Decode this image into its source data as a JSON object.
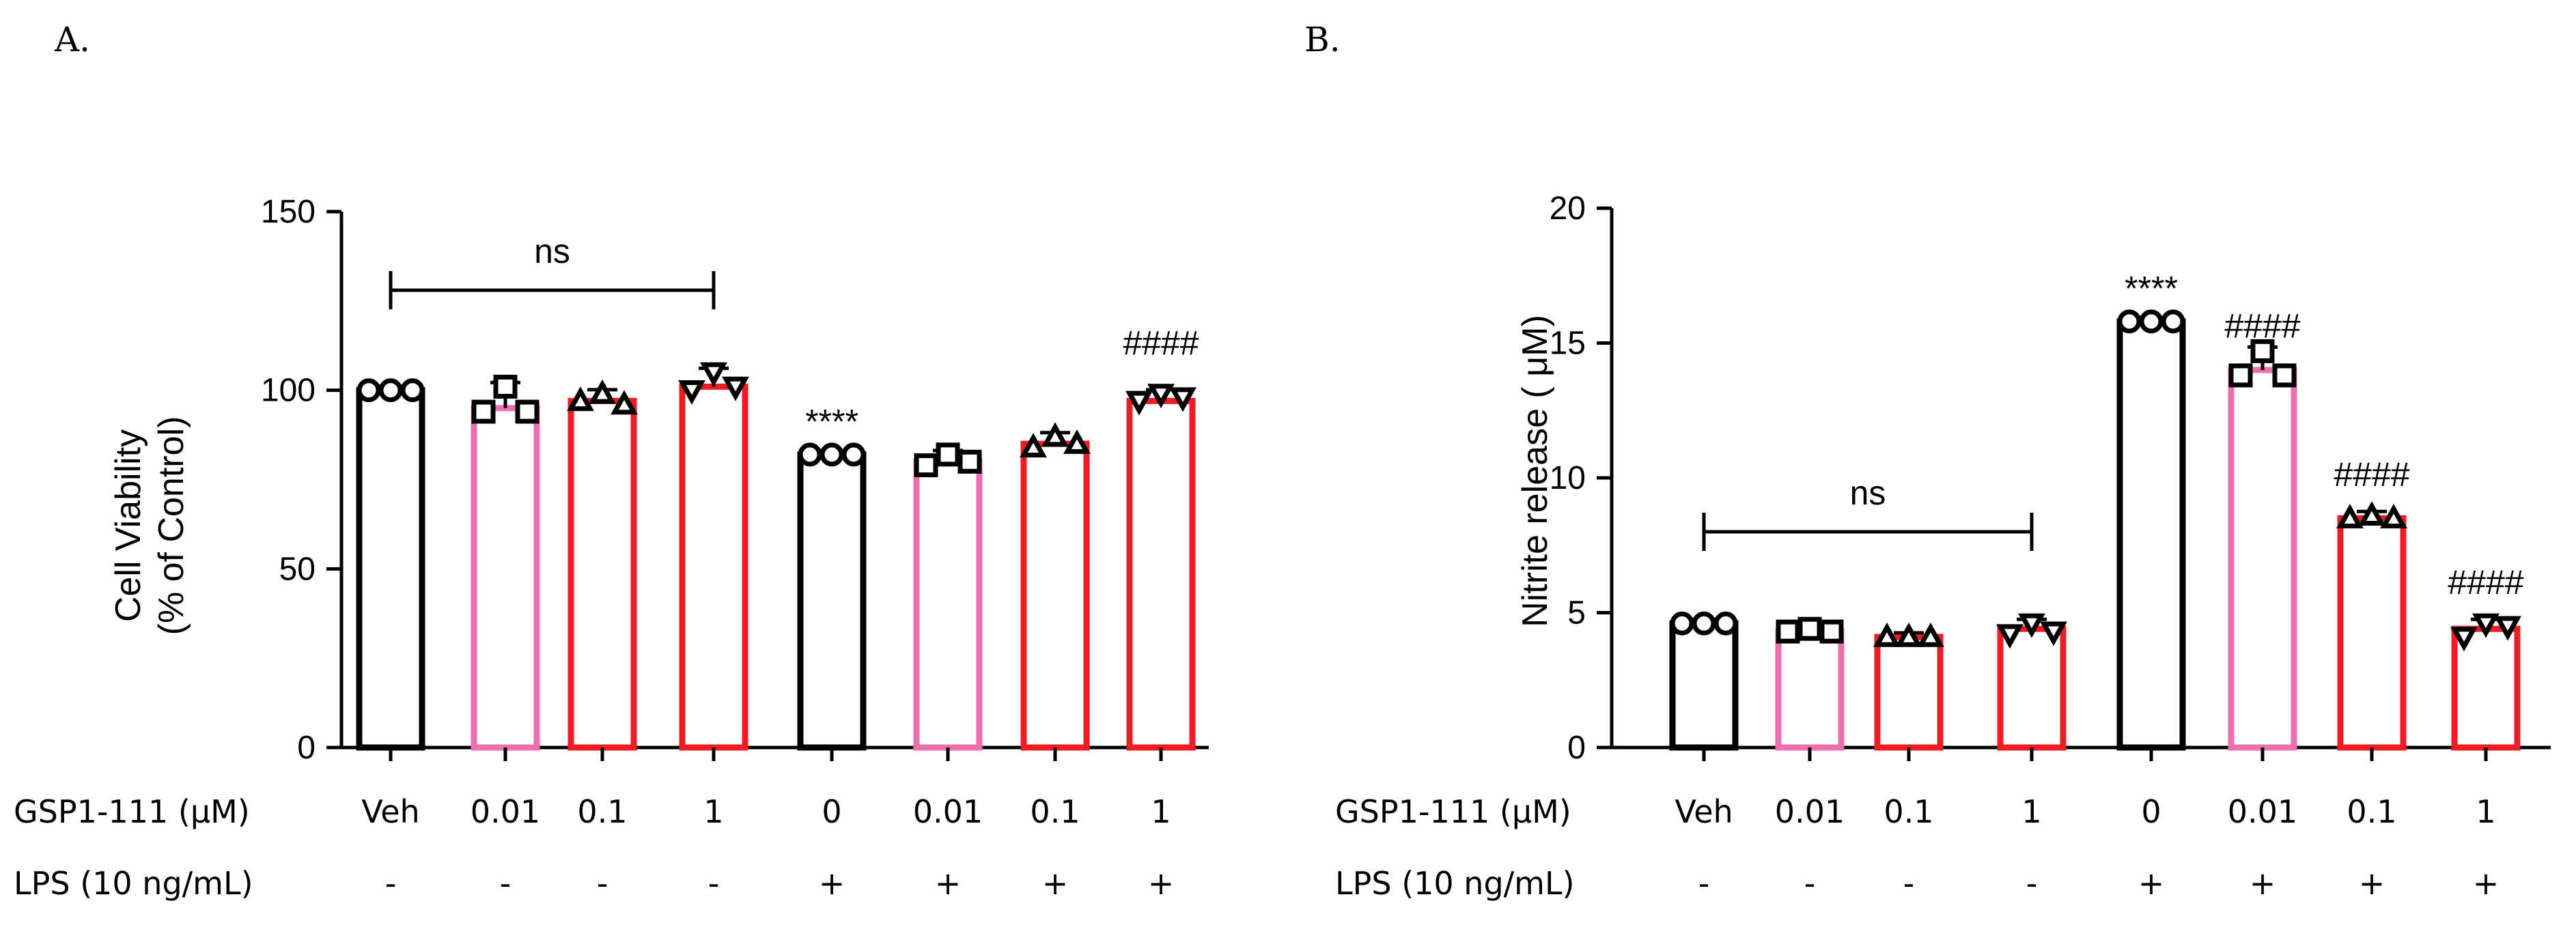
{
  "colors": {
    "black": "#000000",
    "pink": "#ee6fb0",
    "red": "#ee1c25"
  },
  "row_labels": {
    "gsp": "GSP1-111 (μM)",
    "lps": "LPS (10 ng/mL)"
  },
  "chart_data": [
    {
      "panel": "A.",
      "type": "bar",
      "title": "",
      "ylabel_line1": "Cell Viability",
      "ylabel_line2": "(% of Control)",
      "ylim": [
        0,
        150
      ],
      "yticks": [
        "0",
        "50",
        "100",
        "150"
      ],
      "categories_gsp": [
        "Veh",
        "0.01",
        "0.1",
        "1",
        "0",
        "0.01",
        "0.1",
        "1"
      ],
      "categories_lps": [
        "-",
        "-",
        "-",
        "-",
        "+",
        "+",
        "+",
        "+"
      ],
      "values": [
        100,
        95,
        97,
        101,
        82,
        80,
        85,
        97
      ],
      "bar_colors": [
        "black",
        "pink",
        "red",
        "red",
        "black",
        "pink",
        "red",
        "red"
      ],
      "markers": [
        "circle",
        "square",
        "triangle",
        "invtriangle",
        "circle",
        "square",
        "triangle",
        "invtriangle"
      ],
      "points": [
        [
          100,
          100,
          100
        ],
        [
          94,
          101,
          94
        ],
        [
          97,
          99,
          96
        ],
        [
          100,
          105,
          101
        ],
        [
          82,
          82,
          82
        ],
        [
          79,
          82,
          80
        ],
        [
          84,
          87,
          85
        ],
        [
          97,
          99,
          98
        ]
      ],
      "annotations": [
        {
          "text": "ns",
          "type": "bracket",
          "from": 0,
          "to": 3,
          "y": 128
        },
        {
          "text": "****",
          "bar": 4,
          "y": 88
        },
        {
          "text": "####",
          "bar": 7,
          "y": 110
        }
      ]
    },
    {
      "panel": "B.",
      "type": "bar",
      "title": "",
      "ylabel_line1": "Nitrite release ( μM)",
      "ylabel_line2": "",
      "ylim": [
        0,
        20
      ],
      "yticks": [
        "0",
        "5",
        "10",
        "15",
        "20"
      ],
      "categories_gsp": [
        "Veh",
        "0.01",
        "0.1",
        "1",
        "0",
        "0.01",
        "0.1",
        "1"
      ],
      "categories_lps": [
        "-",
        "-",
        "-",
        "-",
        "+",
        "+",
        "+",
        "+"
      ],
      "values": [
        4.6,
        4.3,
        4.1,
        4.4,
        15.8,
        14.0,
        8.5,
        4.4
      ],
      "bar_colors": [
        "black",
        "pink",
        "red",
        "red",
        "black",
        "pink",
        "red",
        "red"
      ],
      "markers": [
        "circle",
        "square",
        "triangle",
        "invtriangle",
        "circle",
        "square",
        "triangle",
        "invtriangle"
      ],
      "points": [
        [
          4.6,
          4.6,
          4.6
        ],
        [
          4.3,
          4.4,
          4.3
        ],
        [
          4.1,
          4.1,
          4.1
        ],
        [
          4.2,
          4.6,
          4.3
        ],
        [
          15.8,
          15.8,
          15.8
        ],
        [
          13.8,
          14.7,
          13.8
        ],
        [
          8.5,
          8.6,
          8.5
        ],
        [
          4.1,
          4.6,
          4.5
        ]
      ],
      "annotations": [
        {
          "text": "ns",
          "type": "bracket",
          "from": 0,
          "to": 3,
          "y": 8
        },
        {
          "text": "****",
          "bar": 4,
          "y": 16.6
        },
        {
          "text": "####",
          "bar": 5,
          "y": 15.2
        },
        {
          "text": "####",
          "bar": 6,
          "y": 9.7
        },
        {
          "text": "####",
          "bar": 7,
          "y": 5.7
        }
      ]
    }
  ]
}
